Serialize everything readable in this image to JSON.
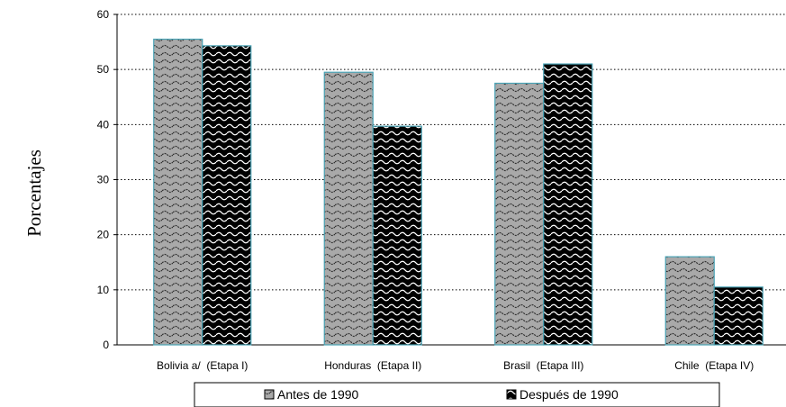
{
  "chart_data": {
    "type": "bar",
    "ylabel": "Porcentajes",
    "xlabel": "",
    "ylim": [
      0,
      60
    ],
    "yticks": [
      0,
      10,
      20,
      30,
      40,
      50,
      60
    ],
    "grid": true,
    "legend_position": "bottom",
    "categories": [
      "Bolivia a/  (Etapa I)",
      "Honduras  (Etapa II)",
      "Brasil  (Etapa III)",
      "Chile  (Etapa IV)"
    ],
    "series": [
      {
        "name": "Antes de 1990",
        "values": [
          55.5,
          49.5,
          47.5,
          16.0
        ],
        "color": "#a6a6a6"
      },
      {
        "name": "Después de 1990",
        "values": [
          54.3,
          39.7,
          51.0,
          10.5
        ],
        "color": "#000000"
      }
    ]
  }
}
